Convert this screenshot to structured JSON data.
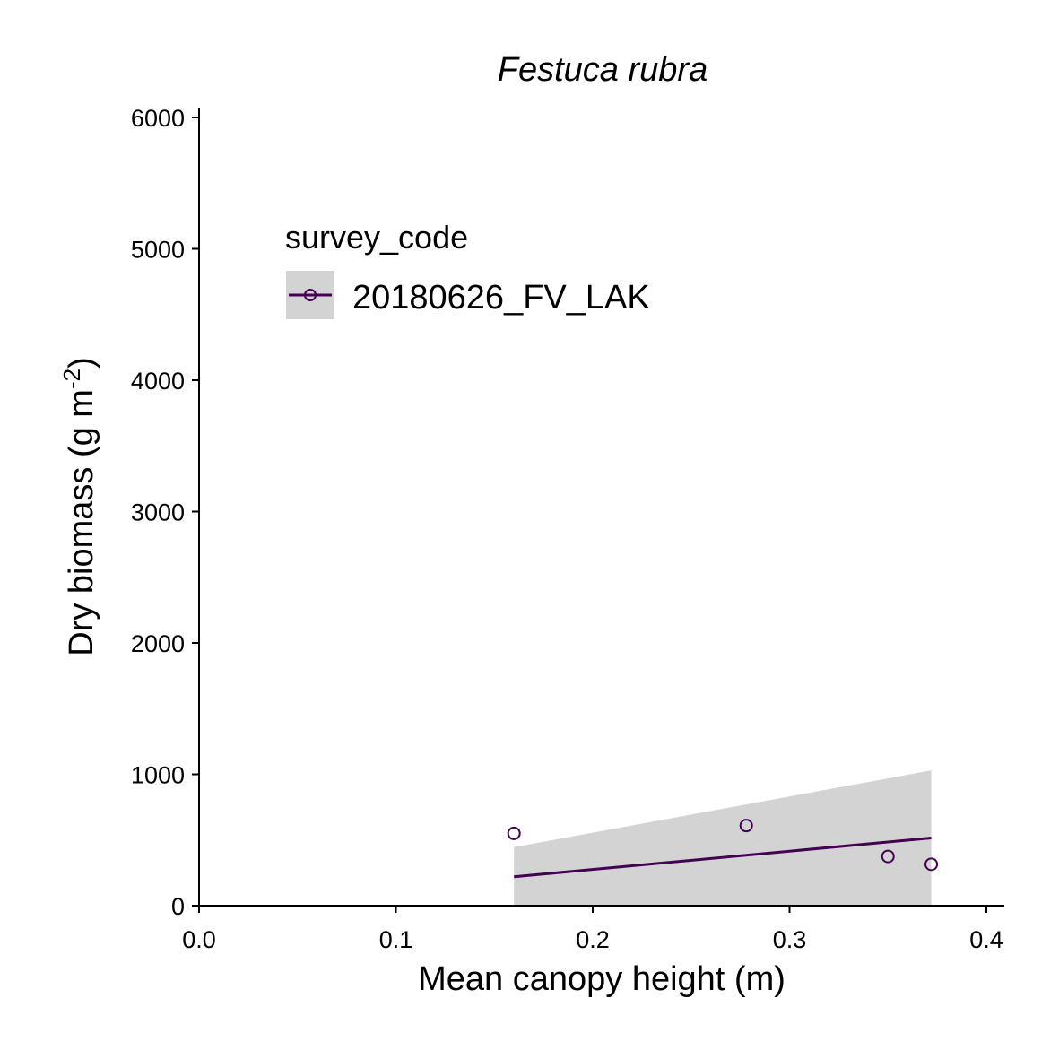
{
  "chart_data": {
    "type": "scatter",
    "title": "Festuca rubra",
    "xlabel": "Mean canopy height (m)",
    "ylabel": "Dry biomass (g m",
    "ylabel_superscript": "-2",
    "ylabel_suffix": ")",
    "xlim": [
      0.0,
      0.4
    ],
    "ylim": [
      0,
      6000
    ],
    "x_ticks": [
      0.0,
      0.1,
      0.2,
      0.3,
      0.4
    ],
    "x_tick_labels": [
      "0.0",
      "0.1",
      "0.2",
      "0.3",
      "0.4"
    ],
    "y_ticks": [
      0,
      1000,
      2000,
      3000,
      4000,
      5000,
      6000
    ],
    "y_tick_labels": [
      "0",
      "1000",
      "2000",
      "3000",
      "4000",
      "5000",
      "6000"
    ],
    "grid": false,
    "legend": {
      "title": "survey_code",
      "placement": "top-left",
      "entries": [
        "20180626_FV_LAK"
      ]
    },
    "series": [
      {
        "name": "20180626_FV_LAK",
        "color": "#440154",
        "points": [
          {
            "x": 0.16,
            "y": 550
          },
          {
            "x": 0.278,
            "y": 610
          },
          {
            "x": 0.35,
            "y": 375
          },
          {
            "x": 0.372,
            "y": 315
          }
        ],
        "fit": {
          "x": [
            0.16,
            0.372
          ],
          "y": [
            220,
            515
          ],
          "ci_lower": [
            -5,
            -5
          ],
          "ci_upper": [
            445,
            1030
          ]
        }
      }
    ],
    "ribbon_color": "#d3d3d3"
  }
}
